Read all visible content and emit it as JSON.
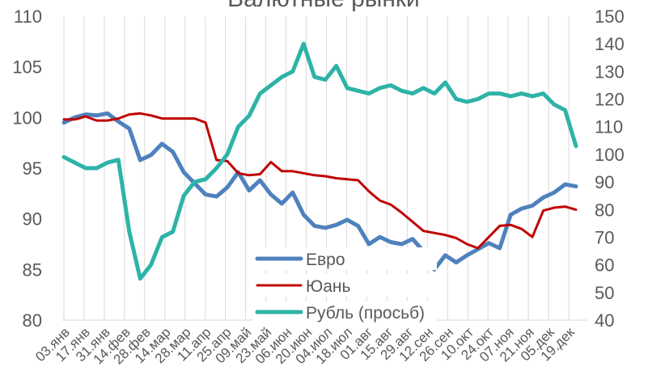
{
  "chart_data": {
    "type": "line",
    "title": "Валютные рынки",
    "xlabel": "",
    "ylabel": "",
    "y_left_lim": [
      80,
      110
    ],
    "y_left_ticks": [
      80,
      85,
      90,
      95,
      100,
      105,
      110
    ],
    "y_right_lim": [
      40,
      150
    ],
    "y_right_ticks": [
      40,
      50,
      60,
      70,
      80,
      90,
      100,
      110,
      120,
      130,
      140,
      150
    ],
    "grid": "vertical",
    "legend_position": "bottom-center",
    "x_labels": [
      "03.янв",
      "17.янв",
      "31.янв",
      "14.фев",
      "28.фев",
      "14.мар",
      "28.мар",
      "11.апр",
      "25.апр",
      "09.май",
      "23.май",
      "06.июн",
      "20.июн",
      "04.июл",
      "18.июл",
      "01.авг",
      "15.авг",
      "29.авг",
      "12.сен",
      "26.сен",
      "10.окт",
      "24.окт",
      "07.ноя",
      "21.ноя",
      "05.дек",
      "19.дек"
    ],
    "series": [
      {
        "name": "Евро",
        "axis": "left",
        "color": "#4F81BD",
        "values": [
          99.5,
          100.0,
          100.3,
          100.2,
          100.4,
          99.6,
          98.9,
          95.8,
          96.3,
          97.4,
          96.6,
          94.6,
          93.5,
          92.4,
          92.2,
          93.1,
          94.6,
          92.8,
          93.8,
          92.4,
          91.5,
          92.6,
          90.4,
          89.3,
          89.1,
          89.4,
          89.9,
          89.3,
          87.5,
          88.2,
          87.7,
          87.5,
          88.0,
          86.8,
          85.0,
          86.4,
          85.7,
          86.4,
          87.0,
          87.6,
          87.1,
          90.4,
          91.0,
          91.3,
          92.1,
          92.6,
          93.4,
          93.2
        ]
      },
      {
        "name": "Юань",
        "axis": "left",
        "color": "#C00000",
        "values": [
          99.8,
          99.8,
          100.1,
          99.7,
          99.7,
          99.9,
          100.3,
          100.4,
          100.2,
          99.9,
          99.9,
          99.9,
          99.9,
          99.5,
          95.8,
          95.7,
          94.5,
          94.3,
          94.4,
          95.6,
          94.7,
          94.7,
          94.5,
          94.3,
          94.2,
          94.0,
          93.9,
          93.8,
          92.7,
          91.8,
          91.4,
          90.6,
          89.7,
          88.8,
          88.6,
          88.4,
          88.1,
          87.5,
          87.1,
          88.2,
          89.3,
          89.4,
          89.0,
          88.2,
          90.8,
          91.1,
          91.2,
          90.9
        ]
      },
      {
        "name": "Рубль (просьб)",
        "axis": "right",
        "color": "#2EB3A7",
        "values": [
          99,
          97,
          95,
          95,
          97,
          98,
          72,
          55,
          60,
          70,
          72,
          85,
          90,
          91,
          95,
          100,
          110,
          114,
          122,
          125,
          128,
          130,
          140,
          128,
          127,
          132,
          124,
          123,
          122,
          124,
          125,
          123,
          122,
          124,
          122,
          126,
          120,
          119,
          120,
          122,
          122,
          121,
          122,
          121,
          122,
          118,
          116,
          103
        ]
      }
    ]
  }
}
